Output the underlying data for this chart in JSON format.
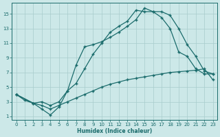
{
  "xlabel": "Humidex (Indice chaleur)",
  "ylabel": "",
  "xlim": [
    -0.5,
    23.5
  ],
  "ylim": [
    0.5,
    16.5
  ],
  "xticks": [
    0,
    1,
    2,
    3,
    4,
    5,
    6,
    7,
    8,
    9,
    10,
    11,
    12,
    13,
    14,
    15,
    16,
    17,
    18,
    19,
    20,
    21,
    22,
    23
  ],
  "yticks": [
    1,
    3,
    5,
    7,
    9,
    11,
    13,
    15
  ],
  "bg_color": "#cce8e8",
  "grid_color": "#a8cccc",
  "line_color": "#1a6b6b",
  "line1_x": [
    0,
    1,
    2,
    3,
    4,
    5,
    6,
    7,
    8,
    9,
    10,
    11,
    12,
    13,
    14,
    15,
    16,
    17,
    18,
    19,
    20,
    21,
    22,
    23
  ],
  "line1_y": [
    4.0,
    3.2,
    2.8,
    2.5,
    2.0,
    2.5,
    3.0,
    3.5,
    4.0,
    4.5,
    5.0,
    5.4,
    5.7,
    6.0,
    6.2,
    6.4,
    6.6,
    6.8,
    7.0,
    7.1,
    7.2,
    7.3,
    7.5,
    6.0
  ],
  "line2_x": [
    0,
    2,
    3,
    4,
    5,
    6,
    7,
    8,
    9,
    10,
    11,
    12,
    13,
    14,
    15,
    16,
    17,
    18,
    19,
    20,
    21,
    22,
    23
  ],
  "line2_y": [
    4.0,
    2.8,
    2.0,
    1.2,
    2.3,
    4.5,
    8.0,
    10.5,
    10.8,
    11.2,
    11.8,
    12.5,
    13.3,
    14.2,
    15.8,
    15.3,
    15.3,
    14.8,
    13.0,
    10.8,
    9.2,
    7.2,
    6.8
  ],
  "line3_x": [
    0,
    2,
    3,
    4,
    5,
    6,
    7,
    8,
    9,
    10,
    11,
    12,
    13,
    14,
    15,
    16,
    17,
    18,
    19,
    20,
    21,
    22,
    23
  ],
  "line3_y": [
    4.0,
    2.8,
    3.0,
    2.5,
    3.0,
    4.5,
    5.5,
    7.5,
    9.5,
    11.0,
    12.5,
    13.3,
    14.0,
    15.5,
    15.3,
    15.3,
    14.5,
    13.0,
    9.8,
    9.2,
    7.5,
    6.8,
    6.8
  ]
}
